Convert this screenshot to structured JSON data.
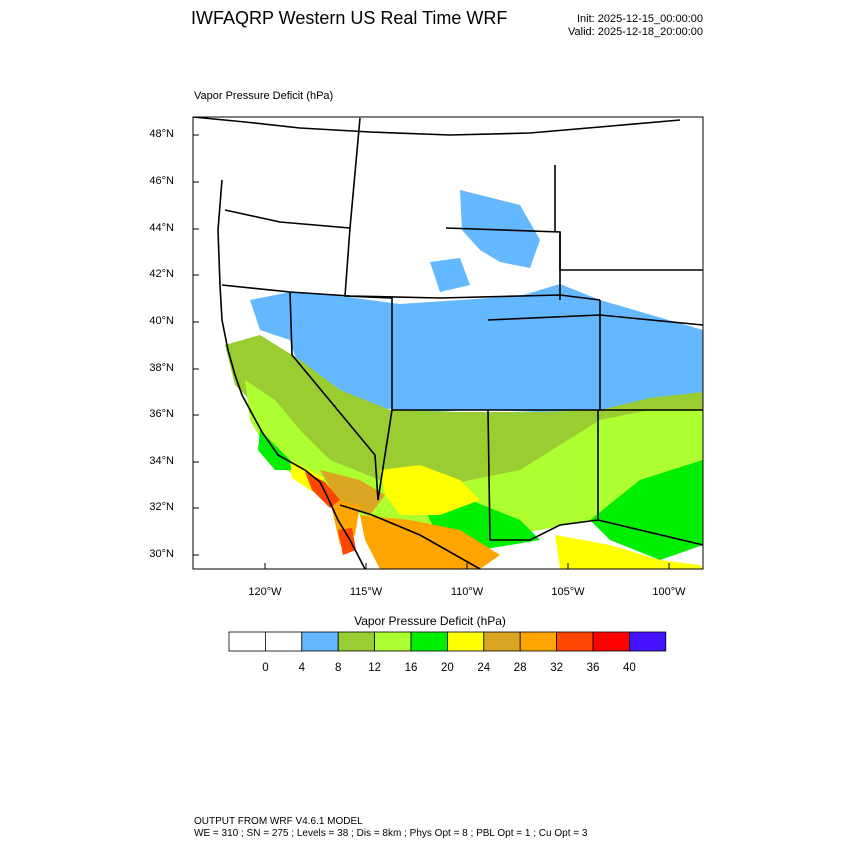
{
  "header": {
    "title": "IWFAQRP Western US Real Time WRF",
    "init": "Init: 2025-12-15_00:00:00",
    "valid": "Valid: 2025-12-18_20:00:00"
  },
  "map": {
    "field_label": "Vapor Pressure Deficit   (hPa)",
    "lat_labels": [
      "48°N",
      "46°N",
      "44°N",
      "42°N",
      "40°N",
      "38°N",
      "36°N",
      "34°N",
      "32°N",
      "30°N"
    ],
    "lon_labels": [
      "120°W",
      "115°W",
      "110°W",
      "105°W",
      "100°W"
    ]
  },
  "colorbar": {
    "title": "Vapor Pressure Deficit  (hPa)",
    "levels": [
      "0",
      "4",
      "8",
      "12",
      "16",
      "20",
      "24",
      "28",
      "32",
      "36",
      "40"
    ],
    "colors": [
      "#ffffff",
      "#ffffff",
      "#63b8ff",
      "#9acd32",
      "#adff2f",
      "#00ee00",
      "#ffff00",
      "#daa520",
      "#ffa500",
      "#ff4500",
      "#ff0000",
      "#4412ff"
    ]
  },
  "footer": {
    "line1": "OUTPUT FROM WRF V4.6.1 MODEL",
    "line2": "WE = 310 ; SN = 275 ; Levels = 38 ; Dis = 8km ; Phys Opt = 8 ; PBL Opt = 1 ; Cu Opt = 3"
  }
}
